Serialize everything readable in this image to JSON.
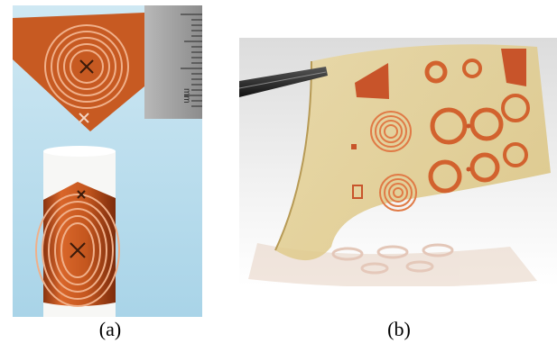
{
  "figure": {
    "panel_a": {
      "caption": "(a)",
      "ruler_unit": "mm"
    },
    "panel_b": {
      "caption": "(b)"
    }
  },
  "colors": {
    "polyimide": "#c85a22",
    "copper": "#f0a070",
    "background_a": "#bfe0ef",
    "background_b": "#ececec",
    "ruler": "#9a9a9a"
  }
}
